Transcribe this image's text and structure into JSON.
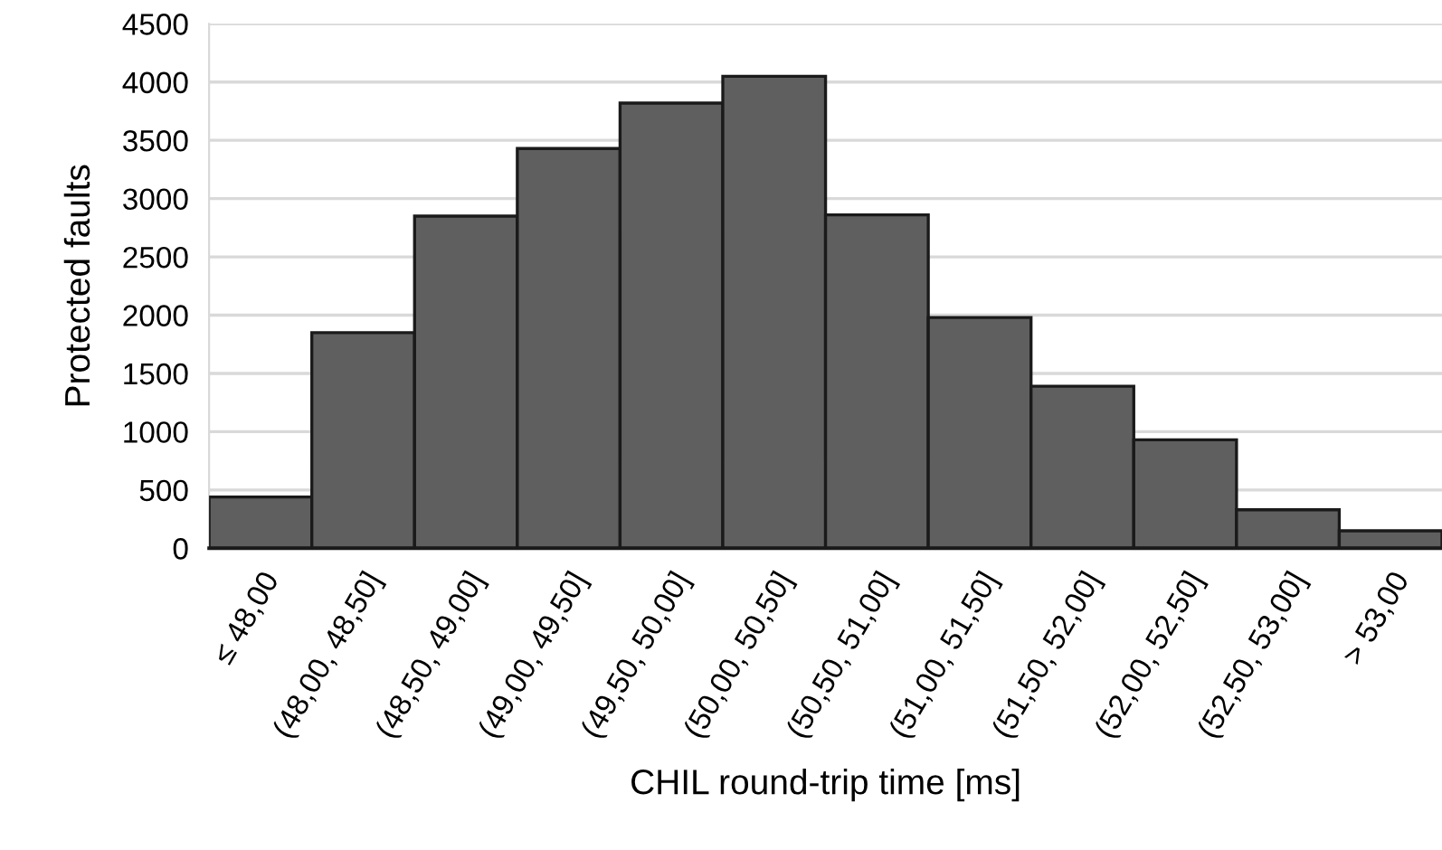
{
  "chart_data": {
    "type": "bar",
    "xlabel": "CHIL round-trip time [ms]",
    "ylabel": "Protected faults",
    "categories": [
      "≤ 48,00",
      "(48,00, 48,50]",
      "(48,50, 49,00]",
      "(49,00, 49,50]",
      "(49,50, 50,00]",
      "(50,00, 50,50]",
      "(50,50, 51,00]",
      "(51,00, 51,50]",
      "(51,50, 52,00]",
      "(52,00, 52,50]",
      "(52,50, 53,00]",
      "> 53,00"
    ],
    "values": [
      440,
      1850,
      2850,
      3430,
      3820,
      4050,
      2860,
      1980,
      1390,
      930,
      330,
      150
    ],
    "color": "#5f5f5f",
    "ylim": [
      0,
      4500
    ],
    "yticks": [
      0,
      500,
      1000,
      1500,
      2000,
      2500,
      3000,
      3500,
      4000,
      4500
    ],
    "grid": "y"
  }
}
